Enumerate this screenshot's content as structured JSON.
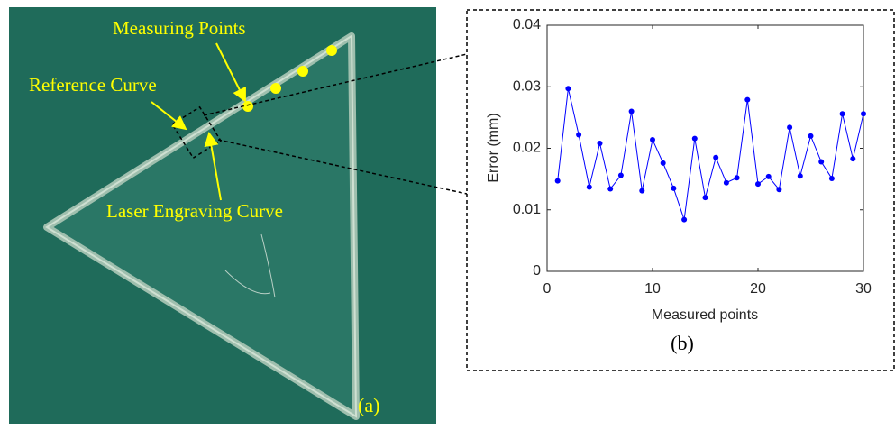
{
  "photo": {
    "labels": [
      "Measuring Points",
      "Reference Curve",
      "Laser Engraving Curve"
    ],
    "panel_label": "(a)"
  },
  "chart_data": {
    "type": "line",
    "panel_label": "(b)",
    "xlabel": "Measured points",
    "ylabel": "Error (mm)",
    "x": [
      1,
      2,
      3,
      4,
      5,
      6,
      7,
      8,
      9,
      10,
      11,
      12,
      13,
      14,
      15,
      16,
      17,
      18,
      19,
      20,
      21,
      22,
      23,
      24,
      25,
      26,
      27,
      28,
      29,
      30
    ],
    "series": [
      {
        "color": "#0000ff",
        "values": [
          0.0147,
          0.0297,
          0.0222,
          0.0137,
          0.0208,
          0.0134,
          0.0156,
          0.026,
          0.0131,
          0.0214,
          0.0176,
          0.0135,
          0.0084,
          0.0216,
          0.012,
          0.0185,
          0.0144,
          0.0152,
          0.0279,
          0.0142,
          0.0154,
          0.0133,
          0.0234,
          0.0155,
          0.022,
          0.0178,
          0.0151,
          0.0256,
          0.0183,
          0.0256
        ]
      }
    ],
    "xlim": [
      0,
      30
    ],
    "xticks": [
      0,
      10,
      20,
      30
    ],
    "ylim": [
      0,
      0.04
    ],
    "yticks": [
      0,
      0.01,
      0.02,
      0.03,
      0.04
    ],
    "grid": false
  }
}
